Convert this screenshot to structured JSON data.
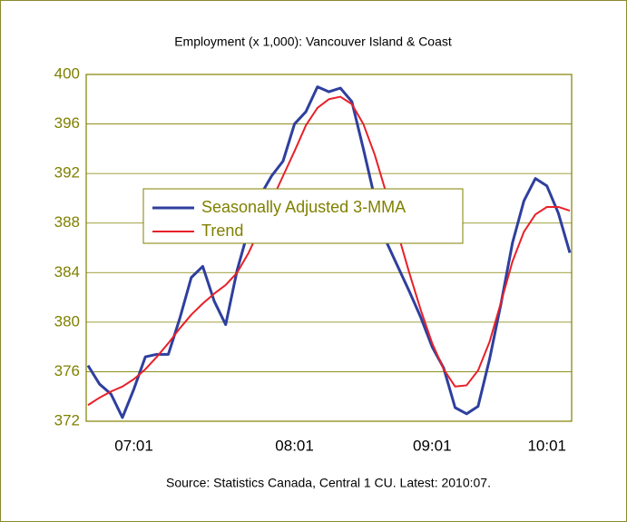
{
  "chart_data": {
    "type": "line",
    "title": "Employment (x 1,000): Vancouver Island & Coast",
    "source": "Source:  Statistics Canada, Central 1 CU. Latest: 2010:07.",
    "categories": [
      null,
      null,
      null,
      null,
      "07:01",
      null,
      null,
      null,
      null,
      null,
      null,
      null,
      null,
      null,
      null,
      null,
      null,
      null,
      "08:01",
      null,
      null,
      null,
      null,
      null,
      null,
      null,
      null,
      null,
      null,
      null,
      "09:01",
      null,
      null,
      null,
      null,
      null,
      null,
      null,
      null,
      null,
      "10:01",
      null,
      null
    ],
    "series": [
      {
        "name": "Seasonally Adjusted 3-MMA",
        "color": "#2e3f9e",
        "values": [
          376.5,
          375,
          374.2,
          372.3,
          374.6,
          377.2,
          377.4,
          377.4,
          380.3,
          383.6,
          384.5,
          381.7,
          379.8,
          384.2,
          387.5,
          390.2,
          391.8,
          393,
          396,
          397,
          399,
          398.6,
          398.9,
          397.8,
          394,
          390,
          386.5,
          384.5,
          382.5,
          380.4,
          378,
          376.3,
          373.1,
          372.6,
          373.2,
          377,
          381.5,
          386.4,
          389.8,
          391.6,
          391,
          388.8,
          385.6
        ]
      },
      {
        "name": "Trend",
        "color": "#e8202a",
        "values": [
          373.3,
          373.9,
          374.4,
          374.8,
          375.4,
          376.2,
          377.2,
          378.3,
          379.5,
          380.6,
          381.5,
          382.3,
          383.0,
          384.0,
          385.6,
          387.6,
          389.8,
          391.8,
          393.8,
          395.9,
          397.3,
          398.0,
          398.2,
          397.6,
          396.0,
          393.5,
          390.4,
          387.2,
          384.0,
          381.0,
          378.3,
          376.2,
          374.8,
          374.9,
          376.1,
          378.4,
          381.6,
          384.9,
          387.3,
          388.7,
          389.3,
          389.3,
          389.0
        ]
      }
    ],
    "ylim": [
      372,
      400
    ],
    "yticks": [
      372,
      376,
      380,
      384,
      388,
      392,
      396,
      400
    ],
    "grid": true
  }
}
